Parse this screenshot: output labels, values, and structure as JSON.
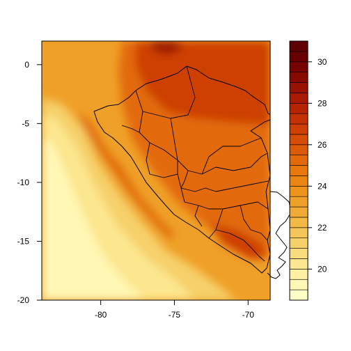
{
  "chart_data": {
    "type": "heatmap",
    "map_region": "Peru",
    "title": "",
    "xlabel": "",
    "ylabel": "",
    "xlim": [
      -84,
      -68.5
    ],
    "ylim": [
      -20,
      2
    ],
    "x_ticks": [
      -80,
      -75,
      -70
    ],
    "y_ticks": [
      0,
      -5,
      -10,
      -15,
      -20
    ],
    "x_tick_labels": [
      "-80",
      "-75",
      "-70"
    ],
    "y_tick_labels": [
      "0",
      "-5",
      "-10",
      "-15",
      "-20"
    ],
    "colorbar": {
      "min": 18.5,
      "max": 31,
      "step": 0.5,
      "ticks": [
        20,
        22,
        24,
        26,
        28,
        30
      ],
      "tick_labels": [
        "20",
        "22",
        "24",
        "26",
        "28",
        "30"
      ],
      "colors": [
        "#FFFFC8",
        "#FFF7B5",
        "#FFEFA2",
        "#FCE68F",
        "#F9DC7C",
        "#F6D06A",
        "#F4C558",
        "#F2B946",
        "#F0AB36",
        "#EFA028",
        "#EE941D",
        "#EB8615",
        "#E7790F",
        "#E26A0B",
        "#DC5B08",
        "#D54D06",
        "#CD3F05",
        "#C23204",
        "#B62503",
        "#A81A02",
        "#981202",
        "#870A02",
        "#760302",
        "#680003",
        "#5E0004"
      ]
    },
    "grid": false,
    "legend": "right"
  }
}
